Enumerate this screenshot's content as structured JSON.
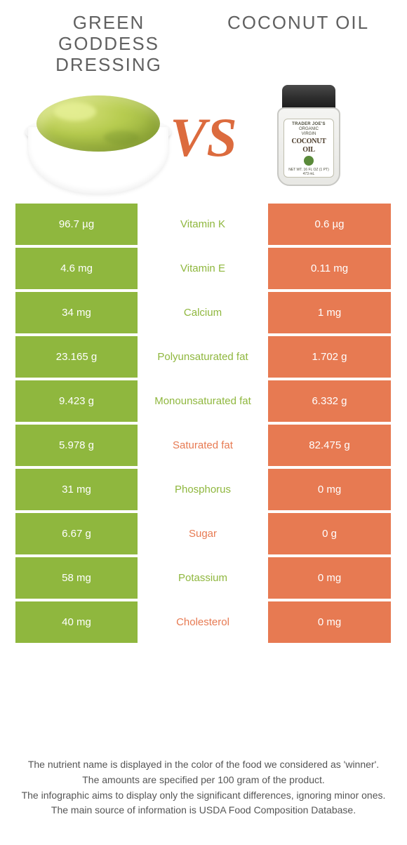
{
  "header": {
    "left_title": "GREEN GODDESS DRESSING",
    "right_title": "COCONUT OIL",
    "vs_text": "VS"
  },
  "jar": {
    "brand": "TRADER JOE'S",
    "line1": "ORGANIC",
    "line2": "VIRGIN",
    "coconut": "COCONUT",
    "oil": "OIL",
    "netwt": "NET WT. 16 FL OZ (1 PT) 473 mL"
  },
  "colors": {
    "left": "#8fb73e",
    "right": "#e77a52",
    "mid_bg": "#ffffff",
    "text_on_color": "#ffffff"
  },
  "rows": [
    {
      "left": "96.7 µg",
      "label": "Vitamin K",
      "right": "0.6 µg",
      "winner": "left"
    },
    {
      "left": "4.6 mg",
      "label": "Vitamin E",
      "right": "0.11 mg",
      "winner": "left"
    },
    {
      "left": "34 mg",
      "label": "Calcium",
      "right": "1 mg",
      "winner": "left"
    },
    {
      "left": "23.165 g",
      "label": "Polyunsaturated fat",
      "right": "1.702 g",
      "winner": "left"
    },
    {
      "left": "9.423 g",
      "label": "Monounsaturated fat",
      "right": "6.332 g",
      "winner": "left"
    },
    {
      "left": "5.978 g",
      "label": "Saturated fat",
      "right": "82.475 g",
      "winner": "right"
    },
    {
      "left": "31 mg",
      "label": "Phosphorus",
      "right": "0 mg",
      "winner": "left"
    },
    {
      "left": "6.67 g",
      "label": "Sugar",
      "right": "0 g",
      "winner": "right"
    },
    {
      "left": "58 mg",
      "label": "Potassium",
      "right": "0 mg",
      "winner": "left"
    },
    {
      "left": "40 mg",
      "label": "Cholesterol",
      "right": "0 mg",
      "winner": "right"
    }
  ],
  "notes": {
    "l1": "The nutrient name is displayed in the color of the food we considered as 'winner'.",
    "l2": "The amounts are specified per 100 gram of the product.",
    "l3": "The infographic aims to display only the significant differences, ignoring minor ones.",
    "l4": "The main source of information is USDA Food Composition Database."
  }
}
